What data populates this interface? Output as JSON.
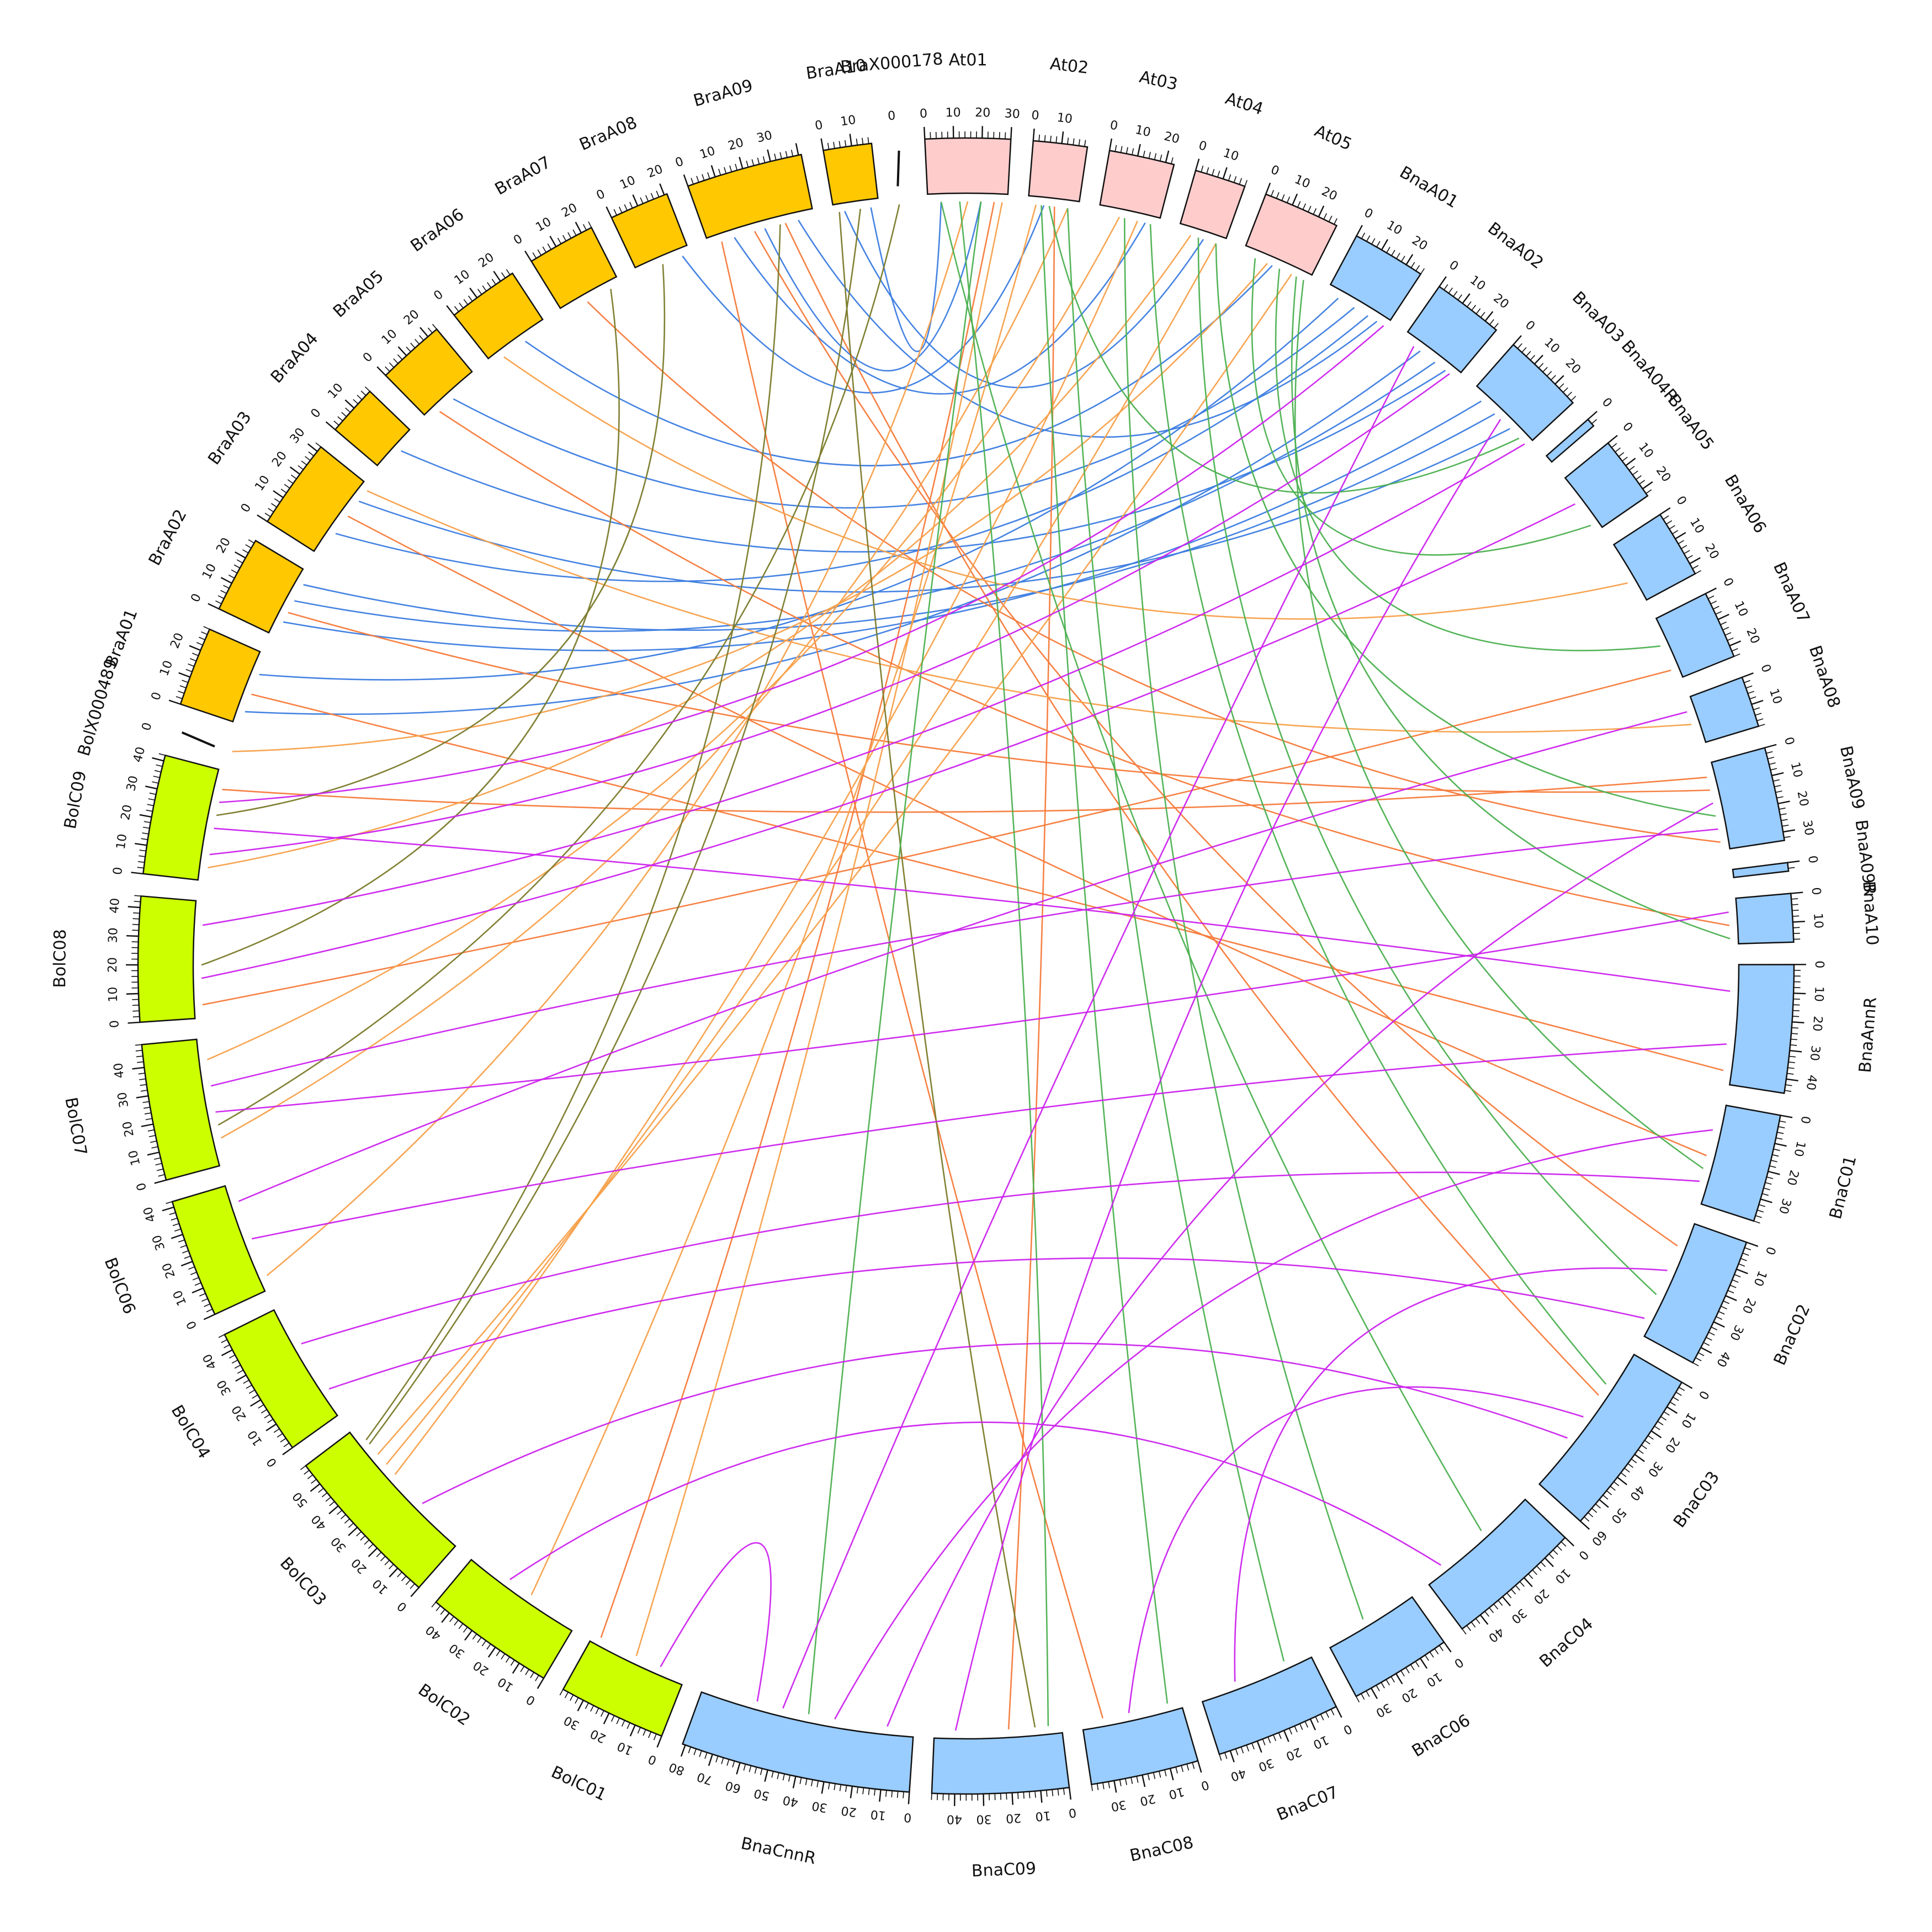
{
  "colors": {
    "bra_block": "#FFC800",
    "at_block": "#FFCCCC",
    "bna_block": "#99CCFF",
    "bol_block": "#CCFF00",
    "link_blue": "#3B7CE0",
    "link_orange": "#F57A3A",
    "link_lightorange": "#F7A04A",
    "link_olive": "#7A7A2A",
    "link_green": "#4CB050",
    "link_purple": "#CC22EE"
  },
  "segments": [
    {
      "name": "BraX000178",
      "length": 1,
      "group": "scaff",
      "ticks": [
        0
      ]
    },
    {
      "name": "At01",
      "length": 30,
      "group": "at",
      "ticks": [
        0,
        10,
        20,
        30
      ]
    },
    {
      "name": "At02",
      "length": 19,
      "group": "at",
      "ticks": [
        0,
        10
      ]
    },
    {
      "name": "At03",
      "length": 23,
      "group": "at",
      "ticks": [
        0,
        10,
        20
      ]
    },
    {
      "name": "At04",
      "length": 18,
      "group": "at",
      "ticks": [
        0,
        10
      ]
    },
    {
      "name": "At05",
      "length": 27,
      "group": "at",
      "ticks": [
        0,
        10,
        20
      ]
    },
    {
      "name": "BnaA01",
      "length": 26,
      "group": "bna",
      "ticks": [
        0,
        10,
        20
      ]
    },
    {
      "name": "BnaA02",
      "length": 25,
      "group": "bna",
      "ticks": [
        0,
        10,
        20
      ]
    },
    {
      "name": "BnaA03",
      "length": 29,
      "group": "bna",
      "ticks": [
        0,
        10,
        20
      ]
    },
    {
      "name": "BnaA04R",
      "length": 3,
      "group": "bna",
      "ticks": [
        0
      ]
    },
    {
      "name": "BnaA05",
      "length": 23,
      "group": "bna",
      "ticks": [
        0,
        10,
        20
      ]
    },
    {
      "name": "BnaA06",
      "length": 24,
      "group": "bna",
      "ticks": [
        0,
        10,
        20
      ]
    },
    {
      "name": "BnaA07",
      "length": 24,
      "group": "bna",
      "ticks": [
        0,
        10,
        20
      ]
    },
    {
      "name": "BnaA08",
      "length": 18,
      "group": "bna",
      "ticks": [
        0,
        10
      ]
    },
    {
      "name": "BnaA09",
      "length": 33,
      "group": "bna",
      "ticks": [
        0,
        10,
        20,
        30
      ]
    },
    {
      "name": "BnaA09R",
      "length": 2,
      "group": "bna",
      "ticks": [
        0
      ]
    },
    {
      "name": "BnaA10",
      "length": 17,
      "group": "bna",
      "ticks": [
        0,
        10
      ]
    },
    {
      "name": "BnaAnnR",
      "length": 45,
      "group": "bna",
      "ticks": [
        0,
        10,
        20,
        30,
        40
      ]
    },
    {
      "name": "BnaC01",
      "length": 38,
      "group": "bna",
      "ticks": [
        0,
        10,
        20,
        30
      ]
    },
    {
      "name": "BnaC02",
      "length": 46,
      "group": "bna",
      "ticks": [
        0,
        10,
        20,
        30,
        40
      ]
    },
    {
      "name": "BnaC03",
      "length": 60,
      "group": "bna",
      "ticks": [
        0,
        10,
        20,
        30,
        40,
        50,
        60
      ]
    },
    {
      "name": "BnaC04",
      "length": 48,
      "group": "bna",
      "ticks": [
        0,
        10,
        20,
        30,
        40
      ]
    },
    {
      "name": "BnaC06",
      "length": 36,
      "group": "bna",
      "ticks": [
        0,
        10,
        20,
        30
      ]
    },
    {
      "name": "BnaC07",
      "length": 44,
      "group": "bna",
      "ticks": [
        0,
        10,
        20,
        30,
        40
      ]
    },
    {
      "name": "BnaC08",
      "length": 38,
      "group": "bna",
      "ticks": [
        0,
        10,
        20,
        30
      ]
    },
    {
      "name": "BnaC09",
      "length": 48,
      "group": "bna",
      "ticks": [
        0,
        10,
        20,
        30,
        40
      ]
    },
    {
      "name": "BnaCnnR",
      "length": 81,
      "group": "bna",
      "ticks": [
        0,
        10,
        20,
        30,
        40,
        50,
        60,
        70,
        80
      ]
    },
    {
      "name": "BolC01",
      "length": 38,
      "group": "bol",
      "ticks": [
        0,
        10,
        20,
        30
      ]
    },
    {
      "name": "BolC02",
      "length": 46,
      "group": "bol",
      "ticks": [
        0,
        10,
        20,
        30,
        40
      ]
    },
    {
      "name": "BolC03",
      "length": 58,
      "group": "bol",
      "ticks": [
        0,
        10,
        20,
        30,
        40,
        50
      ]
    },
    {
      "name": "BolC04",
      "length": 46,
      "group": "bol",
      "ticks": [
        0,
        10,
        20,
        30,
        40
      ]
    },
    {
      "name": "BolC06",
      "length": 42,
      "group": "bol",
      "ticks": [
        0,
        10,
        20,
        30,
        40
      ]
    },
    {
      "name": "BolC07",
      "length": 48,
      "group": "bol",
      "ticks": [
        0,
        10,
        20,
        30,
        40
      ]
    },
    {
      "name": "BolC08",
      "length": 44,
      "group": "bol",
      "ticks": [
        0,
        10,
        20,
        30,
        40
      ]
    },
    {
      "name": "BolC09",
      "length": 42,
      "group": "bol",
      "ticks": [
        0,
        10,
        20,
        30,
        40
      ]
    },
    {
      "name": "BolX000489",
      "length": 1,
      "group": "scaff",
      "ticks": [
        0
      ]
    },
    {
      "name": "BraA01",
      "length": 28,
      "group": "bra",
      "ticks": [
        0,
        10,
        20
      ]
    },
    {
      "name": "BraA02",
      "length": 27,
      "group": "bra",
      "ticks": [
        0,
        10,
        20
      ]
    },
    {
      "name": "BraA03",
      "length": 32,
      "group": "bra",
      "ticks": [
        0,
        10,
        20,
        30
      ]
    },
    {
      "name": "BraA04",
      "length": 18,
      "group": "bra",
      "ticks": [
        0,
        10
      ]
    },
    {
      "name": "BraA05",
      "length": 24,
      "group": "bra",
      "ticks": [
        0,
        10,
        20
      ]
    },
    {
      "name": "BraA06",
      "length": 25,
      "group": "bra",
      "ticks": [
        0,
        10,
        20
      ]
    },
    {
      "name": "BraA07",
      "length": 24,
      "group": "bra",
      "ticks": [
        0,
        10,
        20
      ]
    },
    {
      "name": "BraA08",
      "length": 21,
      "group": "bra",
      "ticks": [
        0,
        10,
        20
      ]
    },
    {
      "name": "BraA09",
      "length": 41,
      "group": "bra",
      "ticks": [
        0,
        10,
        20,
        30
      ]
    },
    {
      "name": "BraA10",
      "length": 17,
      "group": "bra",
      "ticks": [
        0,
        10
      ]
    }
  ],
  "links": [
    {
      "color": "link_blue",
      "a": [
        "BraA01",
        20
      ],
      "b": [
        "BnaA01",
        5
      ]
    },
    {
      "color": "link_blue",
      "a": [
        "BraA01",
        5
      ],
      "b": [
        "BnaA02",
        8
      ]
    },
    {
      "color": "link_blue",
      "a": [
        "BraA02",
        15
      ],
      "b": [
        "BnaA02",
        15
      ]
    },
    {
      "color": "link_blue",
      "a": [
        "BraA02",
        6
      ],
      "b": [
        "BnaA03",
        5
      ]
    },
    {
      "color": "link_blue",
      "a": [
        "BraA03",
        25
      ],
      "b": [
        "BnaA03",
        20
      ]
    },
    {
      "color": "link_blue",
      "a": [
        "BraA03",
        10
      ],
      "b": [
        "BnaA01",
        18
      ]
    },
    {
      "color": "link_blue",
      "a": [
        "BraA04",
        10
      ],
      "b": [
        "BnaA02",
        20
      ]
    },
    {
      "color": "link_blue",
      "a": [
        "BraA05",
        12
      ],
      "b": [
        "BnaA01",
        12
      ]
    },
    {
      "color": "link_blue",
      "a": [
        "BraA06",
        15
      ],
      "b": [
        "At05",
        12
      ]
    },
    {
      "color": "link_blue",
      "a": [
        "BraA09",
        35
      ],
      "b": [
        "BnaA01",
        22
      ]
    },
    {
      "color": "link_blue",
      "a": [
        "BraA09",
        10
      ],
      "b": [
        "At03",
        18
      ]
    },
    {
      "color": "link_blue",
      "a": [
        "BraA10",
        14
      ],
      "b": [
        "At01",
        5
      ]
    },
    {
      "color": "link_blue",
      "a": [
        "BraA08",
        18
      ],
      "b": [
        "At02",
        6
      ]
    },
    {
      "color": "link_blue",
      "a": [
        "BraA10",
        4
      ],
      "b": [
        "At04",
        10
      ]
    },
    {
      "color": "link_blue",
      "a": [
        "BraA09",
        22
      ],
      "b": [
        "At01",
        20
      ]
    },
    {
      "color": "link_blue",
      "a": [
        "BraA02",
        22
      ],
      "b": [
        "BnaA03",
        12
      ]
    },
    {
      "color": "link_orange",
      "a": [
        "BraA09",
        30
      ],
      "b": [
        "BnaC03",
        20
      ]
    },
    {
      "color": "link_orange",
      "a": [
        "BraA09",
        18
      ],
      "b": [
        "BnaC02",
        10
      ]
    },
    {
      "color": "link_orange",
      "a": [
        "BraA07",
        10
      ],
      "b": [
        "BnaA09",
        30
      ]
    },
    {
      "color": "link_orange",
      "a": [
        "BraA05",
        5
      ],
      "b": [
        "BnaA10",
        10
      ]
    },
    {
      "color": "link_orange",
      "a": [
        "BraA03",
        18
      ],
      "b": [
        "BnaC01",
        20
      ]
    },
    {
      "color": "link_orange",
      "a": [
        "BraA02",
        10
      ],
      "b": [
        "BnaA09",
        10
      ]
    },
    {
      "color": "link_orange",
      "a": [
        "BraA01",
        12
      ],
      "b": [
        "BnaAnnR",
        40
      ]
    },
    {
      "color": "link_orange",
      "a": [
        "At02",
        10
      ],
      "b": [
        "BnaC09",
        20
      ]
    },
    {
      "color": "link_orange",
      "a": [
        "At01",
        25
      ],
      "b": [
        "BolC01",
        35
      ]
    },
    {
      "color": "link_orange",
      "a": [
        "BraA09",
        5
      ],
      "b": [
        "BnaC08",
        30
      ]
    },
    {
      "color": "link_orange",
      "a": [
        "BolC09",
        35
      ],
      "b": [
        "BnaA09",
        5
      ]
    },
    {
      "color": "link_orange",
      "a": [
        "BolC08",
        5
      ],
      "b": [
        "BnaA07",
        20
      ]
    },
    {
      "color": "link_lightorange",
      "a": [
        "BolX000489",
        0
      ],
      "b": [
        "At05",
        10
      ]
    },
    {
      "color": "link_lightorange",
      "a": [
        "BolC09",
        5
      ],
      "b": [
        "At04",
        5
      ]
    },
    {
      "color": "link_lightorange",
      "a": [
        "BolC07",
        40
      ],
      "b": [
        "At03",
        8
      ]
    },
    {
      "color": "link_lightorange",
      "a": [
        "BolC07",
        10
      ],
      "b": [
        "At02",
        15
      ]
    },
    {
      "color": "link_lightorange",
      "a": [
        "BolC06",
        5
      ],
      "b": [
        "At01",
        15
      ]
    },
    {
      "color": "link_lightorange",
      "a": [
        "BolC03",
        45
      ],
      "b": [
        "At05",
        20
      ]
    },
    {
      "color": "link_lightorange",
      "a": [
        "BolC03",
        40
      ],
      "b": [
        "At04",
        15
      ]
    },
    {
      "color": "link_lightorange",
      "a": [
        "BolC03",
        35
      ],
      "b": [
        "At03",
        15
      ]
    },
    {
      "color": "link_lightorange",
      "a": [
        "BolC02",
        20
      ],
      "b": [
        "At02",
        3
      ]
    },
    {
      "color": "link_lightorange",
      "a": [
        "BolC01",
        20
      ],
      "b": [
        "At01",
        28
      ]
    },
    {
      "color": "link_lightorange",
      "a": [
        "BraA03",
        30
      ],
      "b": [
        "BnaA08",
        10
      ]
    },
    {
      "color": "link_lightorange",
      "a": [
        "BraA06",
        5
      ],
      "b": [
        "BnaA06",
        15
      ]
    },
    {
      "color": "link_olive",
      "a": [
        "BraA10",
        10
      ],
      "b": [
        "BolC03",
        50
      ]
    },
    {
      "color": "link_olive",
      "a": [
        "BraA09",
        28
      ],
      "b": [
        "BolC03",
        52
      ]
    },
    {
      "color": "link_olive",
      "a": [
        "BraA08",
        10
      ],
      "b": [
        "BolC09",
        25
      ]
    },
    {
      "color": "link_olive",
      "a": [
        "BraA07",
        20
      ],
      "b": [
        "BolC08",
        20
      ]
    },
    {
      "color": "link_olive",
      "a": [
        "BraA10",
        2
      ],
      "b": [
        "BnaC09",
        10
      ]
    },
    {
      "color": "link_olive",
      "a": [
        "BraX000178",
        0
      ],
      "b": [
        "BolC07",
        15
      ]
    },
    {
      "color": "link_green",
      "a": [
        "At01",
        5
      ],
      "b": [
        "BnaC04",
        20
      ]
    },
    {
      "color": "link_green",
      "a": [
        "At01",
        12
      ],
      "b": [
        "BnaC09",
        5
      ]
    },
    {
      "color": "link_green",
      "a": [
        "At02",
        5
      ],
      "b": [
        "BnaC08",
        5
      ]
    },
    {
      "color": "link_green",
      "a": [
        "At02",
        15
      ],
      "b": [
        "BnaC07",
        10
      ]
    },
    {
      "color": "link_green",
      "a": [
        "At03",
        10
      ],
      "b": [
        "BnaC06",
        20
      ]
    },
    {
      "color": "link_green",
      "a": [
        "At03",
        20
      ],
      "b": [
        "BnaC03",
        15
      ]
    },
    {
      "color": "link_green",
      "a": [
        "At04",
        8
      ],
      "b": [
        "BnaC02",
        30
      ]
    },
    {
      "color": "link_green",
      "a": [
        "At04",
        15
      ],
      "b": [
        "BnaA09",
        20
      ]
    },
    {
      "color": "link_green",
      "a": [
        "At05",
        5
      ],
      "b": [
        "BnaA05",
        20
      ]
    },
    {
      "color": "link_green",
      "a": [
        "At05",
        15
      ],
      "b": [
        "BnaA07",
        10
      ]
    },
    {
      "color": "link_green",
      "a": [
        "At05",
        22
      ],
      "b": [
        "BnaA10",
        15
      ]
    },
    {
      "color": "link_green",
      "a": [
        "At01",
        20
      ],
      "b": [
        "BnaCnnR",
        40
      ]
    },
    {
      "color": "link_green",
      "a": [
        "At02",
        8
      ],
      "b": [
        "BnaA03",
        25
      ]
    },
    {
      "color": "link_green",
      "a": [
        "At05",
        25
      ],
      "b": [
        "BnaC01",
        25
      ]
    },
    {
      "color": "link_purple",
      "a": [
        "BolC09",
        30
      ],
      "b": [
        "BnaA01",
        25
      ]
    },
    {
      "color": "link_purple",
      "a": [
        "BolC09",
        10
      ],
      "b": [
        "BnaA02",
        22
      ]
    },
    {
      "color": "link_purple",
      "a": [
        "BolC08",
        35
      ],
      "b": [
        "BnaA03",
        28
      ]
    },
    {
      "color": "link_purple",
      "a": [
        "BolC08",
        15
      ],
      "b": [
        "BnaA05",
        10
      ]
    },
    {
      "color": "link_purple",
      "a": [
        "BolC07",
        30
      ],
      "b": [
        "BnaA09",
        25
      ]
    },
    {
      "color": "link_purple",
      "a": [
        "BolC07",
        20
      ],
      "b": [
        "BnaA10",
        5
      ]
    },
    {
      "color": "link_purple",
      "a": [
        "BolC06",
        20
      ],
      "b": [
        "BnaAnnR",
        30
      ]
    },
    {
      "color": "link_purple",
      "a": [
        "BolC04",
        30
      ],
      "b": [
        "BnaC01",
        30
      ]
    },
    {
      "color": "link_purple",
      "a": [
        "BolC04",
        10
      ],
      "b": [
        "BnaC02",
        40
      ]
    },
    {
      "color": "link_purple",
      "a": [
        "BolC03",
        20
      ],
      "b": [
        "BnaC03",
        40
      ]
    },
    {
      "color": "link_purple",
      "a": [
        "BolC02",
        30
      ],
      "b": [
        "BnaC04",
        40
      ]
    },
    {
      "color": "link_purple",
      "a": [
        "BolC01",
        10
      ],
      "b": [
        "BnaCnnR",
        60
      ]
    },
    {
      "color": "link_purple",
      "a": [
        "BnaCnnR",
        10
      ],
      "b": [
        "BnaA09",
        15
      ]
    },
    {
      "color": "link_purple",
      "a": [
        "BnaC09",
        40
      ],
      "b": [
        "BnaA03",
        15
      ]
    },
    {
      "color": "link_purple",
      "a": [
        "BnaC08",
        20
      ],
      "b": [
        "BnaC03",
        30
      ]
    },
    {
      "color": "link_purple",
      "a": [
        "BnaC07",
        30
      ],
      "b": [
        "BnaC02",
        20
      ]
    },
    {
      "color": "link_purple",
      "a": [
        "BnaCnnR",
        30
      ],
      "b": [
        "BnaC01",
        10
      ]
    },
    {
      "color": "link_purple",
      "a": [
        "BolC09",
        20
      ],
      "b": [
        "BnaAnnR",
        10
      ]
    },
    {
      "color": "link_purple",
      "a": [
        "BolC06",
        35
      ],
      "b": [
        "BnaA08",
        5
      ]
    },
    {
      "color": "link_purple",
      "a": [
        "BnaCnnR",
        50
      ],
      "b": [
        "BnaA02",
        5
      ]
    }
  ]
}
